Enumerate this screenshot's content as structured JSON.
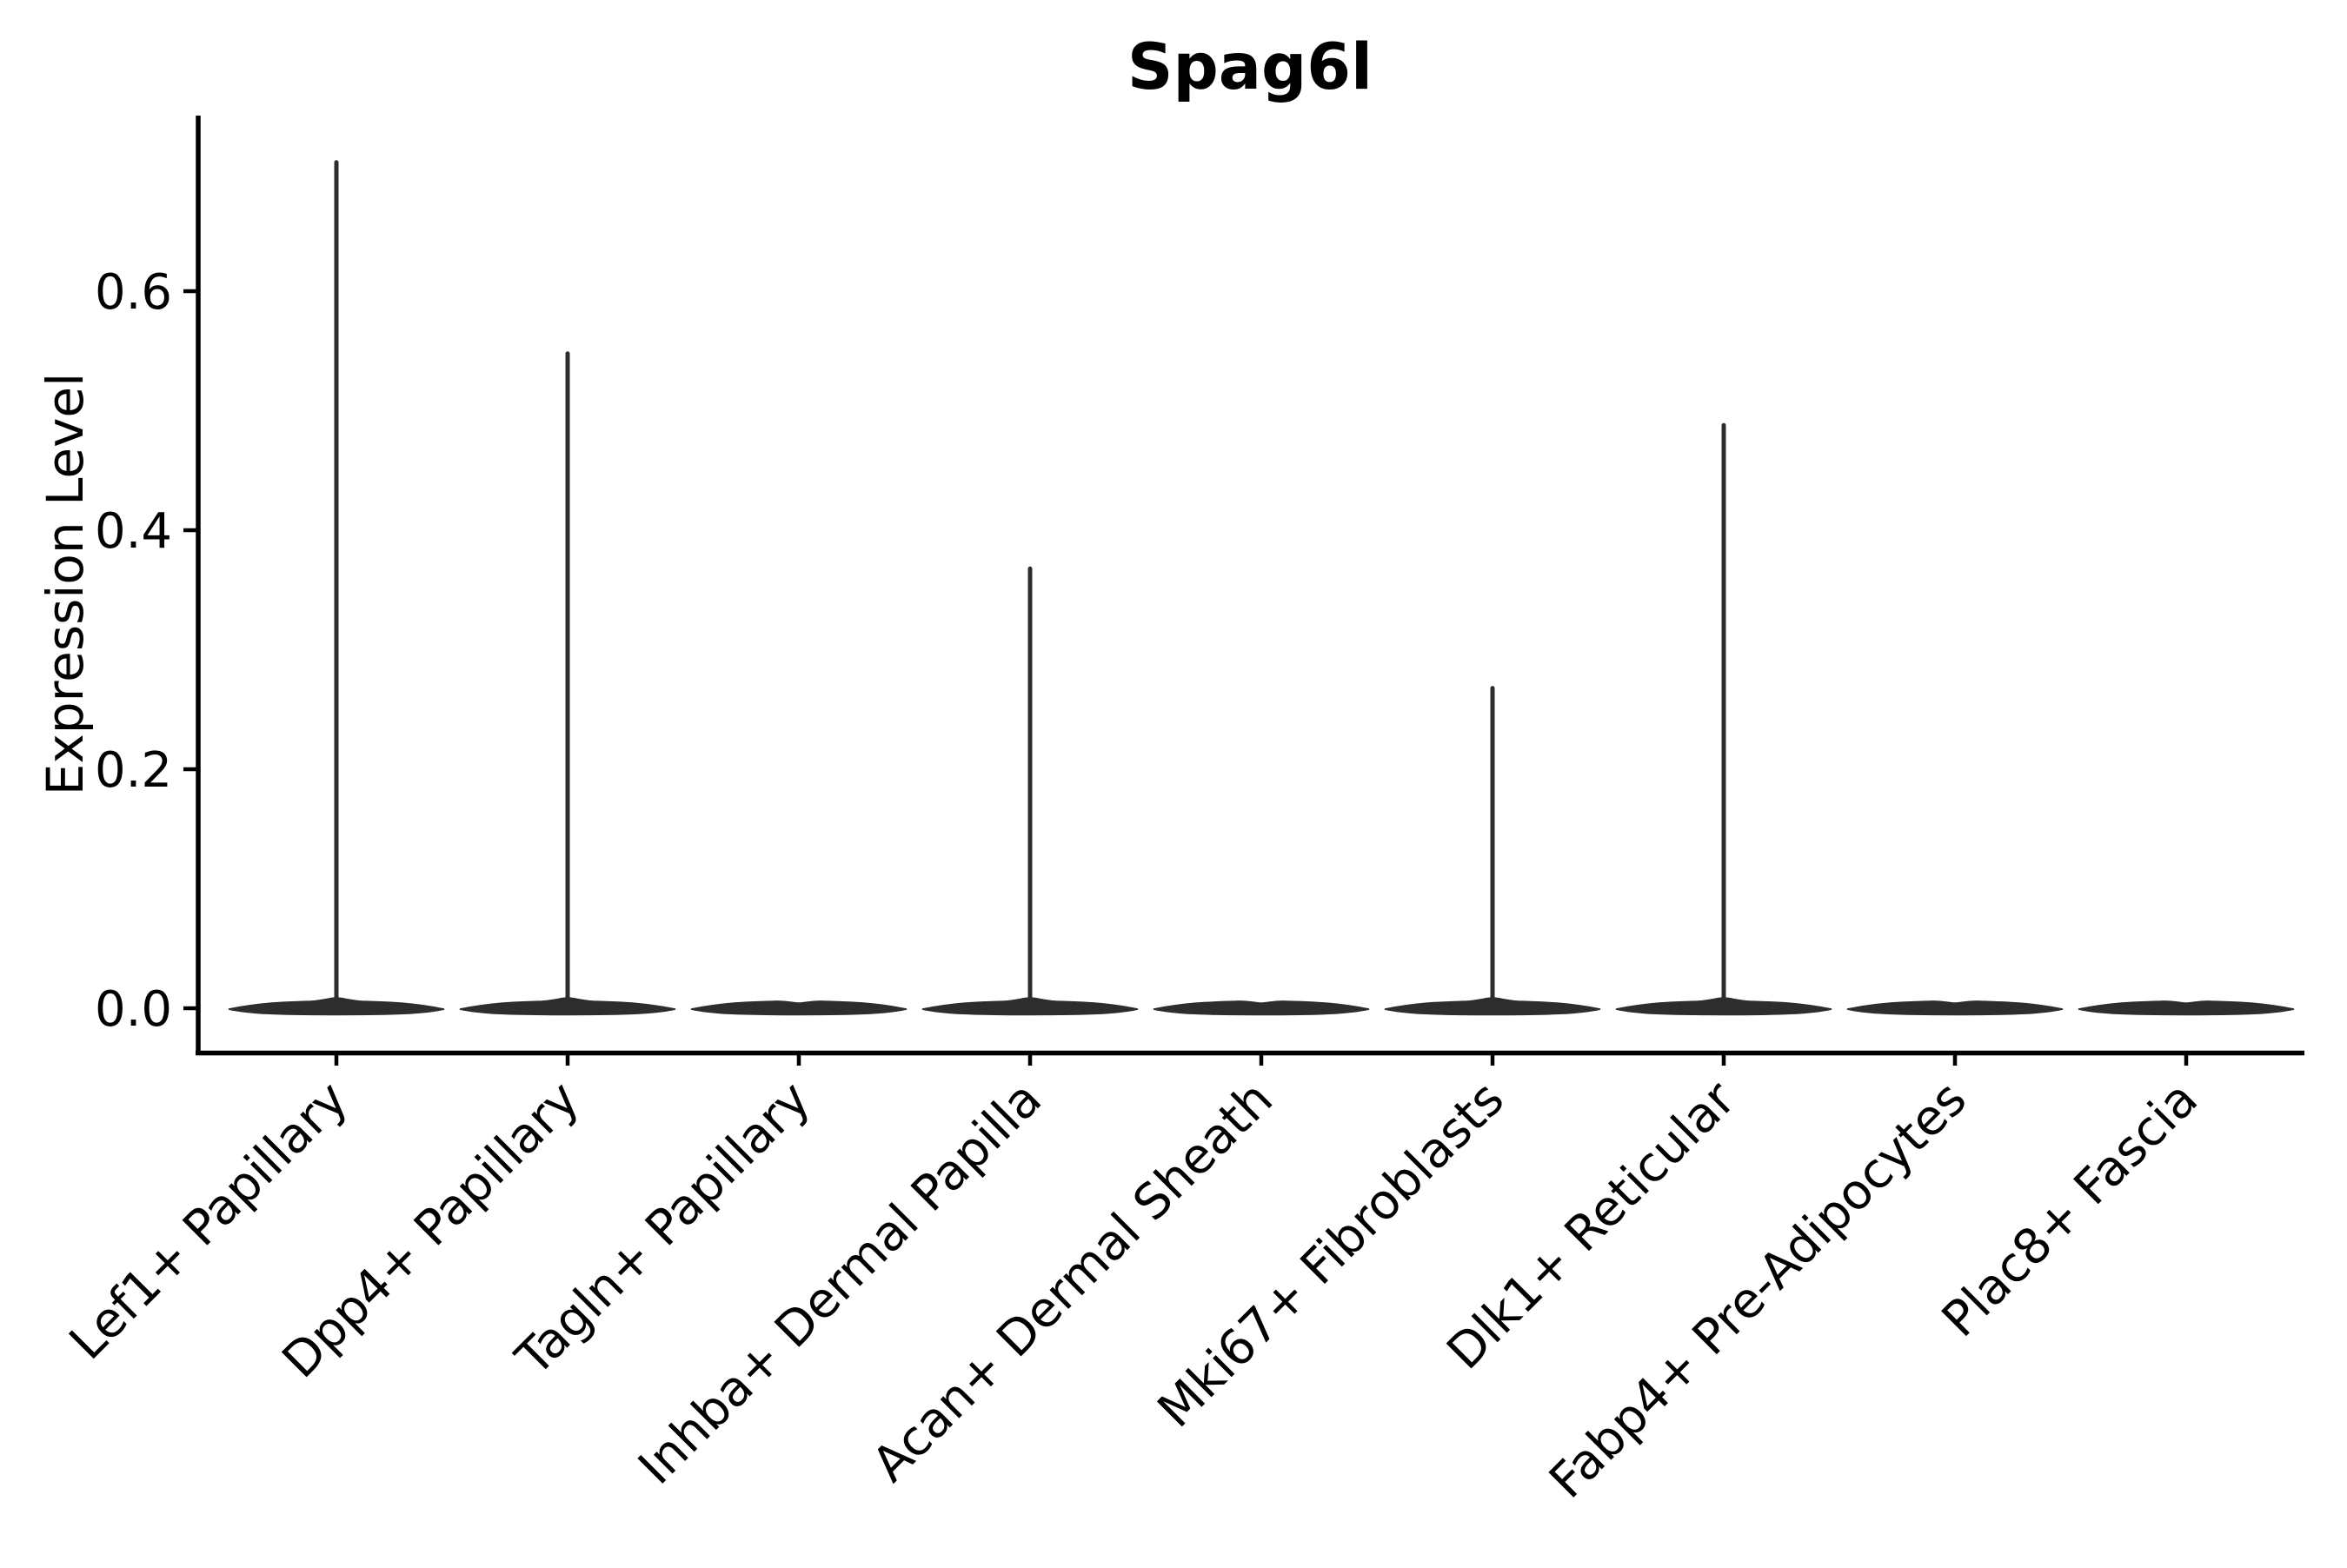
{
  "page": {
    "background": "#ffffff"
  },
  "chart_data": {
    "type": "violin",
    "title": "Spag6l",
    "xlabel": "",
    "ylabel": "Expression Level",
    "categories": [
      "Lef1+ Papillary",
      "Dpp4+ Papillary",
      "Tagln+ Papillary",
      "Inhba+ Dermal Papilla",
      "Acan+ Dermal Sheath",
      "Mki67+ Fibroblasts",
      "Dlk1+ Reticular",
      "Fabp4+ Pre-Adipocytes",
      "Plac8+ Fascia"
    ],
    "series": [
      {
        "name": "spike-top-max-expression",
        "values": [
          0.71,
          0.55,
          0.0,
          0.37,
          0.0,
          0.27,
          0.49,
          0.0,
          0.0
        ]
      },
      {
        "name": "bulk-density-center",
        "values": [
          0.0,
          0.0,
          0.0,
          0.0,
          0.0,
          0.0,
          0.0,
          0.0,
          0.0
        ]
      }
    ],
    "yticks": [
      0.0,
      0.2,
      0.4,
      0.6
    ],
    "ytick_labels": [
      "0.0",
      "0.2",
      "0.4",
      "0.6"
    ],
    "ylim": [
      -0.036,
      0.745
    ],
    "grid": false,
    "legend": "none",
    "colors": {
      "violin_fill": "#2d2d2d",
      "axis": "#000000",
      "text": "#000000",
      "background": "#ffffff"
    }
  }
}
